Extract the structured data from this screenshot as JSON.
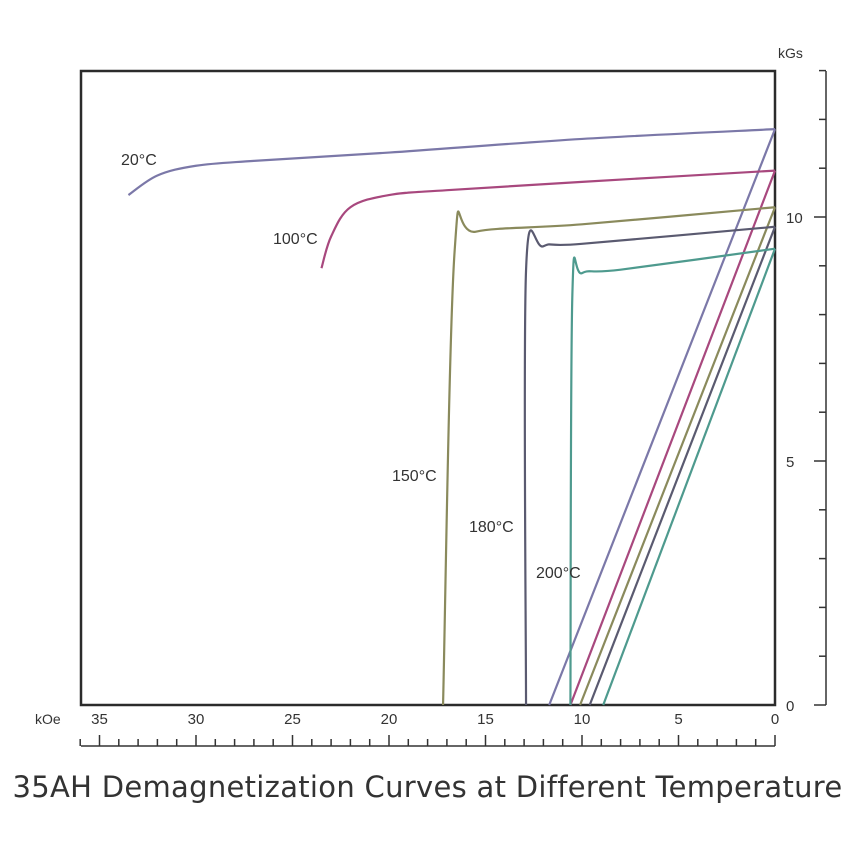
{
  "chart_data": {
    "type": "line",
    "title": "35AH Demagnetization Curves at Different Temperature",
    "x_unit": "kOe",
    "y_unit": "kGs",
    "x_axis_reversed": true,
    "xlim": [
      0,
      36
    ],
    "ylim": [
      0,
      13
    ],
    "x_ticks": [
      35,
      30,
      25,
      20,
      15,
      10,
      5,
      0
    ],
    "y_ticks": [
      0,
      5,
      10
    ],
    "x_tick_labels": [
      "35",
      "30",
      "25",
      "20",
      "15",
      "10",
      "5",
      "0"
    ],
    "y_tick_labels": [
      "0",
      "5",
      "10"
    ],
    "grid": false,
    "series": [
      {
        "name": "20°C",
        "color": "#7b78a8",
        "intrinsic": [
          [
            33.5,
            10.45
          ],
          [
            32,
            10.85
          ],
          [
            30,
            11.05
          ],
          [
            27,
            11.15
          ],
          [
            20,
            11.32
          ],
          [
            10,
            11.6
          ],
          [
            0,
            11.8
          ]
        ],
        "normal": [
          [
            11.7,
            0
          ],
          [
            0,
            11.8
          ]
        ]
      },
      {
        "name": "100°C",
        "color": "#a8487e",
        "intrinsic": [
          [
            23.5,
            8.95
          ],
          [
            23,
            9.6
          ],
          [
            22,
            10.2
          ],
          [
            20,
            10.45
          ],
          [
            17,
            10.55
          ],
          [
            10,
            10.72
          ],
          [
            0,
            10.95
          ]
        ],
        "normal": [
          [
            10.6,
            0
          ],
          [
            0,
            10.95
          ]
        ]
      },
      {
        "name": "150°C",
        "color": "#8a8a5c",
        "intrinsic": [
          [
            17.2,
            0
          ],
          [
            16.6,
            9.3
          ],
          [
            15.5,
            9.7
          ],
          [
            10,
            9.85
          ],
          [
            0,
            10.2
          ]
        ],
        "normal": [
          [
            10.1,
            0
          ],
          [
            0,
            10.2
          ]
        ]
      },
      {
        "name": "180°C",
        "color": "#5a5a70",
        "intrinsic": [
          [
            12.9,
            0
          ],
          [
            12.9,
            8.9
          ],
          [
            12,
            9.4
          ],
          [
            10,
            9.45
          ],
          [
            0,
            9.8
          ]
        ],
        "normal": [
          [
            9.6,
            0
          ],
          [
            0,
            9.8
          ]
        ]
      },
      {
        "name": "200°C",
        "color": "#4e9a8e",
        "intrinsic": [
          [
            10.6,
            0
          ],
          [
            10.5,
            8.4
          ],
          [
            10,
            8.85
          ],
          [
            8,
            8.92
          ],
          [
            0,
            9.35
          ]
        ],
        "normal": [
          [
            8.9,
            0
          ],
          [
            0,
            9.35
          ]
        ]
      }
    ]
  }
}
